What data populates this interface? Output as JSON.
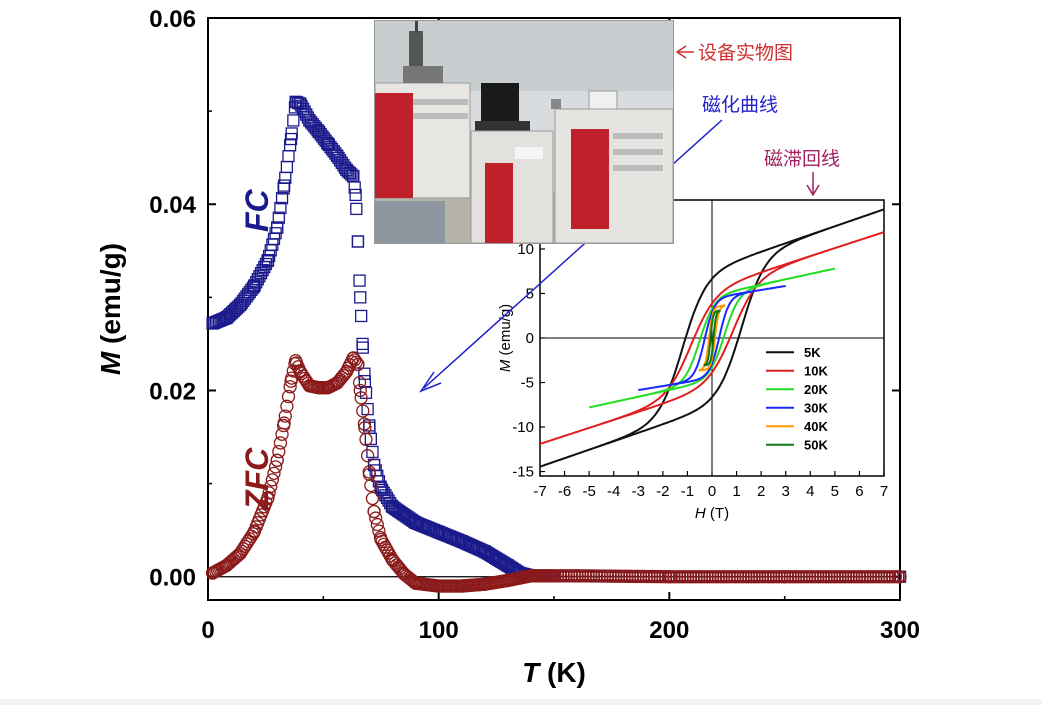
{
  "colors": {
    "fc": "#1a1a8c",
    "zfc": "#8b1a1a",
    "annotation_red": "#d03030",
    "annotation_blue": "#2222cc",
    "annotation_purple": "#a02060"
  },
  "chart_data": [
    {
      "type": "scatter",
      "xlabel_var": "T",
      "xlabel_unit": "(K)",
      "ylabel_var": "M",
      "ylabel_unit": "(emu/g)",
      "xlim": [
        0,
        300
      ],
      "ylim": [
        -0.0025,
        0.06
      ],
      "x_ticks": [
        0,
        100,
        200,
        300
      ],
      "x_tick_labels": [
        "0",
        "100",
        "200",
        "300"
      ],
      "y_ticks": [
        0.0,
        0.02,
        0.04,
        0.06
      ],
      "y_tick_labels": [
        "0.00",
        "0.02",
        "0.04",
        "0.06"
      ],
      "zero_line": true,
      "series": [
        {
          "name": "FC",
          "marker": "open-square",
          "color": "#1a1a8c",
          "points": [
            [
              2,
              0.0272
            ],
            [
              8,
              0.0278
            ],
            [
              14,
              0.0292
            ],
            [
              20,
              0.0312
            ],
            [
              26,
              0.034
            ],
            [
              30,
              0.0375
            ],
            [
              33,
              0.042
            ],
            [
              36,
              0.047
            ],
            [
              38,
              0.051
            ],
            [
              40,
              0.0508
            ],
            [
              44,
              0.049
            ],
            [
              48,
              0.0478
            ],
            [
              52,
              0.0465
            ],
            [
              56,
              0.0452
            ],
            [
              60,
              0.0437
            ],
            [
              63,
              0.043
            ],
            [
              64,
              0.041
            ],
            [
              65,
              0.036
            ],
            [
              66,
              0.03
            ],
            [
              67,
              0.025
            ],
            [
              68,
              0.021
            ],
            [
              70,
              0.016
            ],
            [
              72,
              0.012
            ],
            [
              75,
              0.0095
            ],
            [
              80,
              0.0075
            ],
            [
              90,
              0.0058
            ],
            [
              100,
              0.0048
            ],
            [
              110,
              0.0038
            ],
            [
              120,
              0.0027
            ],
            [
              130,
              0.0012
            ],
            [
              135,
              0.0004
            ],
            [
              140,
              0.0001
            ],
            [
              160,
              0.0001
            ],
            [
              200,
              0.0
            ],
            [
              250,
              0.0
            ],
            [
              300,
              0.0
            ]
          ]
        },
        {
          "name": "ZFC",
          "marker": "open-circle",
          "color": "#8b1a1a",
          "points": [
            [
              2,
              0.0004
            ],
            [
              8,
              0.0012
            ],
            [
              14,
              0.0025
            ],
            [
              20,
              0.0048
            ],
            [
              26,
              0.0085
            ],
            [
              30,
              0.0125
            ],
            [
              33,
              0.0165
            ],
            [
              36,
              0.021
            ],
            [
              38,
              0.0232
            ],
            [
              40,
              0.022
            ],
            [
              44,
              0.0205
            ],
            [
              48,
              0.0203
            ],
            [
              52,
              0.0203
            ],
            [
              56,
              0.0208
            ],
            [
              60,
              0.022
            ],
            [
              63,
              0.0235
            ],
            [
              65,
              0.0228
            ],
            [
              66,
              0.02
            ],
            [
              68,
              0.016
            ],
            [
              70,
              0.011
            ],
            [
              72,
              0.007
            ],
            [
              75,
              0.004
            ],
            [
              80,
              0.0018
            ],
            [
              85,
              0.0003
            ],
            [
              90,
              -0.0007
            ],
            [
              100,
              -0.001
            ],
            [
              110,
              -0.001
            ],
            [
              120,
              -0.0008
            ],
            [
              130,
              -0.0004
            ],
            [
              140,
              0.0001
            ],
            [
              160,
              0.0001
            ],
            [
              200,
              0.0
            ],
            [
              250,
              0.0
            ],
            [
              300,
              0.0
            ]
          ]
        }
      ],
      "annotations": [
        {
          "text": "FC",
          "color": "#1a1a8c"
        },
        {
          "text": "ZFC",
          "color": "#8b1a1a"
        }
      ]
    },
    {
      "type": "line",
      "xlabel_var": "H",
      "xlabel_unit": "(T)",
      "ylabel_var": "M",
      "ylabel_unit": "(emu/g)",
      "xlim": [
        -7,
        7
      ],
      "ylim": [
        -15.5,
        15.5
      ],
      "x_ticks": [
        -7,
        -6,
        -5,
        -4,
        -3,
        -2,
        -1,
        0,
        1,
        2,
        3,
        4,
        5,
        6,
        7
      ],
      "y_ticks": [
        -15,
        -10,
        -5,
        0,
        5,
        10
      ],
      "legend_position": "bottom-right",
      "series": [
        {
          "name": "5K",
          "color": "#111111",
          "hmax": 7,
          "ms": 14.8,
          "hc": 1.2,
          "mr": 7.8,
          "k": 0.95,
          "chi": 0.95
        },
        {
          "name": "10K",
          "color": "#e02020",
          "hmax": 7,
          "ms": 10.8,
          "hc": 0.85,
          "mr": 5.6,
          "k": 1.0,
          "chi": 0.9
        },
        {
          "name": "20K",
          "color": "#22dd22",
          "hmax": 5,
          "ms": 7.6,
          "hc": 0.5,
          "mr": 4.8,
          "k": 0.6,
          "chi": 0.6
        },
        {
          "name": "30K",
          "color": "#1a2aff",
          "hmax": 3,
          "ms": 5.7,
          "hc": 0.3,
          "mr": 4.5,
          "k": 0.4,
          "chi": 0.45
        },
        {
          "name": "40K",
          "color": "#ff9900",
          "hmax": 0.5,
          "ms": 4.3,
          "hc": 0.12,
          "mr": 3.5,
          "k": 0.15,
          "chi": 0.3
        },
        {
          "name": "50K",
          "color": "#117711",
          "hmax": 0.3,
          "ms": 3.8,
          "hc": 0.06,
          "mr": 3.0,
          "k": 0.1,
          "chi": 0.25
        }
      ]
    }
  ],
  "callouts": {
    "photo_label": "设备实物图",
    "magnetization_curve": "磁化曲线",
    "hysteresis_loop": "磁滞回线"
  }
}
